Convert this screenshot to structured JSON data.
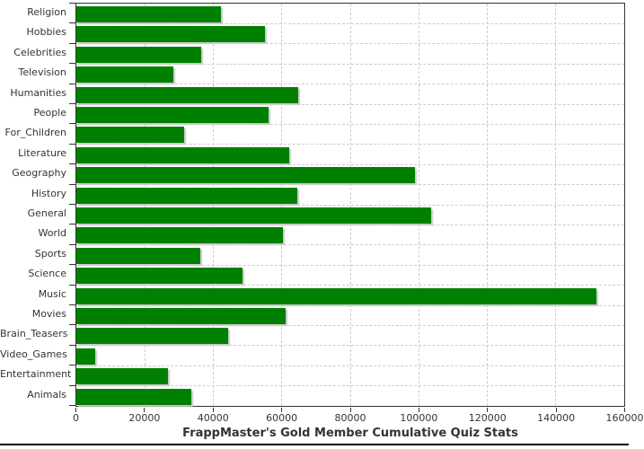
{
  "chart_data": {
    "type": "bar",
    "orientation": "horizontal",
    "title": "FrappMaster's Gold Member Cumulative Quiz Stats",
    "categories": [
      "Religion",
      "Hobbies",
      "Celebrities",
      "Television",
      "Humanities",
      "People",
      "For_Children",
      "Literature",
      "Geography",
      "History",
      "General",
      "World",
      "Sports",
      "Science",
      "Music",
      "Movies",
      "Brain_Teasers",
      "Video_Games",
      "Entertainment",
      "Animals"
    ],
    "values": [
      42300,
      55000,
      36400,
      28300,
      64800,
      56000,
      31600,
      62200,
      98900,
      64400,
      103600,
      60400,
      36300,
      48400,
      151800,
      61200,
      44300,
      5500,
      26700,
      33500
    ],
    "xlabel": "",
    "ylabel": "",
    "xlim": [
      0,
      160000
    ],
    "x_ticks": [
      0,
      20000,
      40000,
      60000,
      80000,
      100000,
      120000,
      140000,
      160000
    ],
    "x_tick_labels": [
      "0",
      "20000",
      "40000",
      "60000",
      "80000",
      "100000",
      "120000",
      "140000",
      "160000"
    ],
    "grid": "dashed, vertical at value ticks and horizontal at category boundaries",
    "legend": "none"
  },
  "colors": {
    "bar": "#008000",
    "bar_shadow": "#c9c9c9",
    "gridline": "#cccccc",
    "plot_border": "#333333",
    "axis_text": "#333333",
    "title_text": "#333333",
    "bottom_rule": "#000000",
    "background": "#ffffff"
  }
}
